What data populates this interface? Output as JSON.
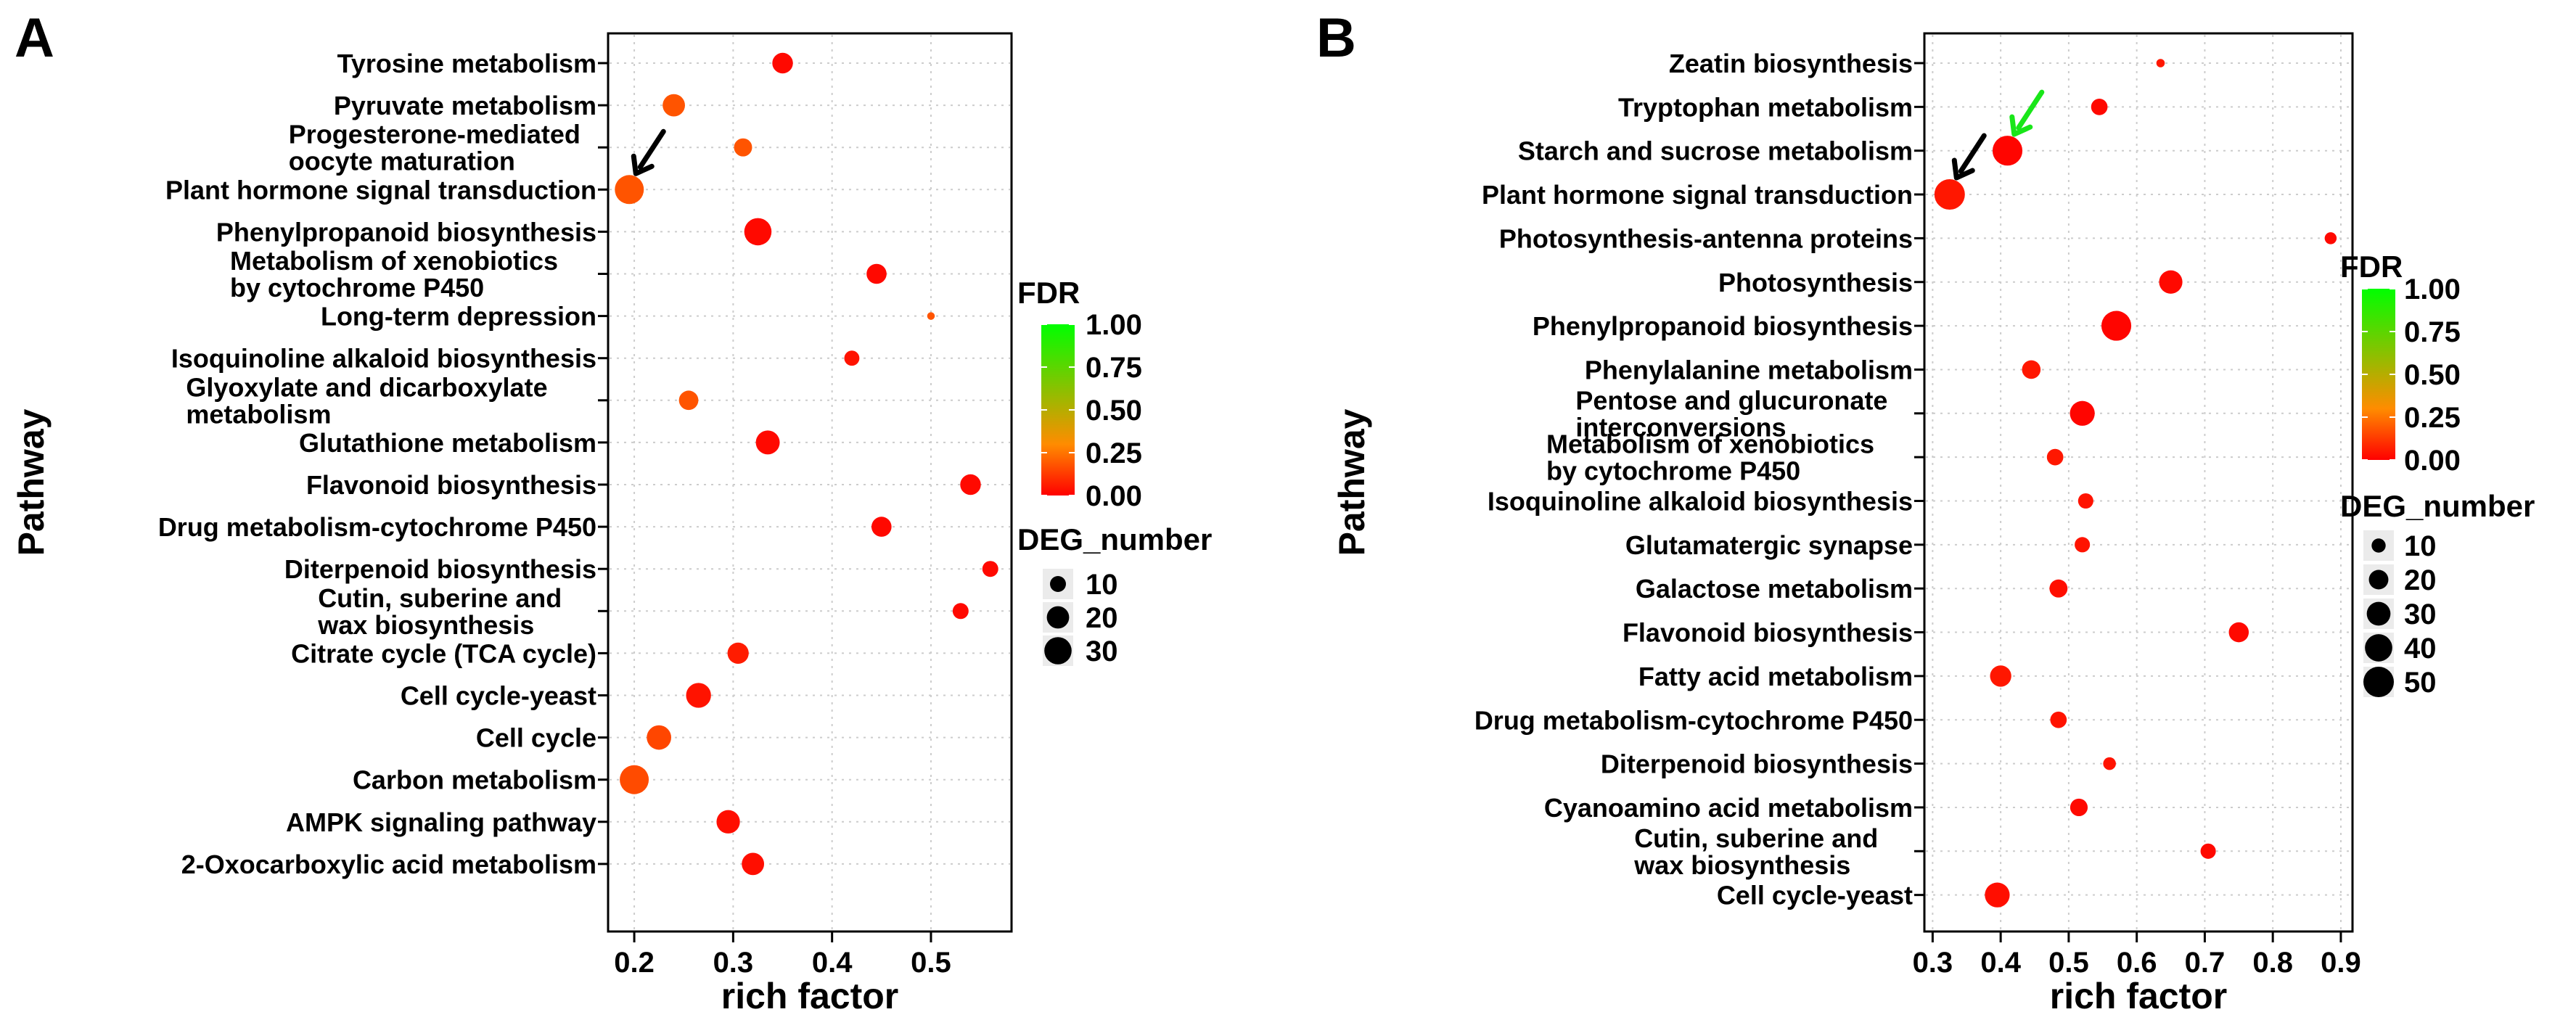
{
  "chart_data": [
    {
      "panel_label": "A",
      "type": "scatter",
      "xlabel": "rich factor",
      "ylabel": "Pathway",
      "xlim": [
        0.175,
        0.58
      ],
      "x_ticks": [
        0.2,
        0.3,
        0.4,
        0.5
      ],
      "x_tick_labels": [
        "0.2",
        "0.3",
        "0.4",
        "0.5"
      ],
      "grid": true,
      "color_legend": {
        "title": "FDR",
        "range": [
          0,
          1
        ],
        "ticks": [
          "1.00",
          "0.75",
          "0.50",
          "0.25",
          "0.00"
        ],
        "low_color": "#ff0000",
        "mid_color": "#ff8c00",
        "high_color": "#00ff00"
      },
      "size_legend": {
        "title": "DEG_number",
        "ticks": [
          10,
          20,
          30
        ],
        "tick_labels": [
          "10",
          "20",
          "30"
        ],
        "size_range": [
          1,
          34
        ]
      },
      "annotations": [
        {
          "type": "arrow",
          "color": "#000000",
          "pathway": "Plant hormone signal transduction"
        }
      ],
      "points": [
        {
          "pathway": "Tyrosine metabolism",
          "label_lines": [
            "Tyrosine metabolism"
          ],
          "rich_factor": 0.35,
          "fdr": 0.02,
          "deg_number": 17
        },
        {
          "pathway": "Pyruvate metabolism",
          "label_lines": [
            "Pyruvate metabolism"
          ],
          "rich_factor": 0.24,
          "fdr": 0.18,
          "deg_number": 20
        },
        {
          "pathway": "Progesterone-mediated oocyte maturation",
          "label_lines": [
            "Progesterone-mediated",
            "oocyte maturation"
          ],
          "rich_factor": 0.31,
          "fdr": 0.18,
          "deg_number": 13
        },
        {
          "pathway": "Plant hormone signal transduction",
          "label_lines": [
            "Plant hormone signal transduction"
          ],
          "rich_factor": 0.195,
          "fdr": 0.18,
          "deg_number": 34
        },
        {
          "pathway": "Phenylpropanoid biosynthesis",
          "label_lines": [
            "Phenylpropanoid biosynthesis"
          ],
          "rich_factor": 0.325,
          "fdr": 0.02,
          "deg_number": 30
        },
        {
          "pathway": "Metabolism of xenobiotics by cytochrome P450",
          "label_lines": [
            "Metabolism of xenobiotics",
            "by cytochrome P450"
          ],
          "rich_factor": 0.445,
          "fdr": 0.02,
          "deg_number": 16
        },
        {
          "pathway": "Long-term depression",
          "label_lines": [
            "Long-term depression"
          ],
          "rich_factor": 0.5,
          "fdr": 0.18,
          "deg_number": 2
        },
        {
          "pathway": "Isoquinoline alkaloid biosynthesis",
          "label_lines": [
            "Isoquinoline alkaloid biosynthesis"
          ],
          "rich_factor": 0.42,
          "fdr": 0.04,
          "deg_number": 9
        },
        {
          "pathway": "Glyoxylate and dicarboxylate metabolism",
          "label_lines": [
            "Glyoxylate and dicarboxylate",
            "metabolism"
          ],
          "rich_factor": 0.255,
          "fdr": 0.18,
          "deg_number": 15
        },
        {
          "pathway": "Glutathione metabolism",
          "label_lines": [
            "Glutathione metabolism"
          ],
          "rich_factor": 0.335,
          "fdr": 0.02,
          "deg_number": 23
        },
        {
          "pathway": "Flavonoid biosynthesis",
          "label_lines": [
            "Flavonoid biosynthesis"
          ],
          "rich_factor": 0.54,
          "fdr": 0.02,
          "deg_number": 17
        },
        {
          "pathway": "Drug metabolism-cytochrome P450",
          "label_lines": [
            "Drug metabolism-cytochrome P450"
          ],
          "rich_factor": 0.45,
          "fdr": 0.02,
          "deg_number": 16
        },
        {
          "pathway": "Diterpenoid biosynthesis",
          "label_lines": [
            "Diterpenoid biosynthesis"
          ],
          "rich_factor": 0.56,
          "fdr": 0.02,
          "deg_number": 10
        },
        {
          "pathway": "Cutin, suberine and wax biosynthesis",
          "label_lines": [
            "Cutin, suberine and",
            "wax biosynthesis"
          ],
          "rich_factor": 0.53,
          "fdr": 0.02,
          "deg_number": 10
        },
        {
          "pathway": "Citrate cycle (TCA cycle)",
          "label_lines": [
            "Citrate cycle (TCA cycle)"
          ],
          "rich_factor": 0.305,
          "fdr": 0.06,
          "deg_number": 18
        },
        {
          "pathway": "Cell cycle-yeast",
          "label_lines": [
            "Cell cycle-yeast"
          ],
          "rich_factor": 0.265,
          "fdr": 0.04,
          "deg_number": 25
        },
        {
          "pathway": "Cell cycle",
          "label_lines": [
            "Cell cycle"
          ],
          "rich_factor": 0.225,
          "fdr": 0.15,
          "deg_number": 24
        },
        {
          "pathway": "Carbon metabolism",
          "label_lines": [
            "Carbon metabolism"
          ],
          "rich_factor": 0.2,
          "fdr": 0.16,
          "deg_number": 34
        },
        {
          "pathway": "AMPK signaling pathway",
          "label_lines": [
            "AMPK signaling pathway"
          ],
          "rich_factor": 0.295,
          "fdr": 0.03,
          "deg_number": 22
        },
        {
          "pathway": "2-Oxocarboxylic acid metabolism",
          "label_lines": [
            "2-Oxocarboxylic acid metabolism"
          ],
          "rich_factor": 0.32,
          "fdr": 0.03,
          "deg_number": 20
        }
      ]
    },
    {
      "panel_label": "B",
      "type": "scatter",
      "xlabel": "rich factor",
      "ylabel": "Pathway",
      "xlim": [
        0.29,
        0.915
      ],
      "x_ticks": [
        0.3,
        0.4,
        0.5,
        0.6,
        0.7,
        0.8,
        0.9
      ],
      "x_tick_labels": [
        "0.3",
        "0.4",
        "0.5",
        "0.6",
        "0.7",
        "0.8",
        "0.9"
      ],
      "grid": true,
      "color_legend": {
        "title": "FDR",
        "range": [
          0,
          1
        ],
        "ticks": [
          "1.00",
          "0.75",
          "0.50",
          "0.25",
          "0.00"
        ],
        "low_color": "#ff0000",
        "mid_color": "#ff8c00",
        "high_color": "#00ff00"
      },
      "size_legend": {
        "title": "DEG_number",
        "ticks": [
          10,
          20,
          30,
          40,
          50
        ],
        "tick_labels": [
          "10",
          "20",
          "30",
          "40",
          "50"
        ],
        "size_range": [
          1,
          50
        ]
      },
      "annotations": [
        {
          "type": "arrow",
          "color": "#000000",
          "pathway": "Plant hormone signal transduction"
        },
        {
          "type": "arrow",
          "color": "#19e619",
          "pathway": "Starch and sucrose metabolism"
        }
      ],
      "points": [
        {
          "pathway": "Zeatin biosynthesis",
          "label_lines": [
            "Zeatin biosynthesis"
          ],
          "rich_factor": 0.635,
          "fdr": 0.05,
          "deg_number": 3
        },
        {
          "pathway": "Tryptophan metabolism",
          "label_lines": [
            "Tryptophan metabolism"
          ],
          "rich_factor": 0.545,
          "fdr": 0.02,
          "deg_number": 14
        },
        {
          "pathway": "Starch and sucrose metabolism",
          "label_lines": [
            "Starch and sucrose metabolism"
          ],
          "rich_factor": 0.41,
          "fdr": 0.01,
          "deg_number": 48
        },
        {
          "pathway": "Plant hormone signal transduction",
          "label_lines": [
            "Plant hormone signal transduction"
          ],
          "rich_factor": 0.325,
          "fdr": 0.05,
          "deg_number": 50
        },
        {
          "pathway": "Photosynthesis-antenna proteins",
          "label_lines": [
            "Photosynthesis-antenna proteins"
          ],
          "rich_factor": 0.885,
          "fdr": 0.02,
          "deg_number": 7
        },
        {
          "pathway": "Photosynthesis",
          "label_lines": [
            "Photosynthesis"
          ],
          "rich_factor": 0.65,
          "fdr": 0.02,
          "deg_number": 29
        },
        {
          "pathway": "Phenylpropanoid biosynthesis",
          "label_lines": [
            "Phenylpropanoid biosynthesis"
          ],
          "rich_factor": 0.57,
          "fdr": 0.01,
          "deg_number": 48
        },
        {
          "pathway": "Phenylalanine metabolism",
          "label_lines": [
            "Phenylalanine metabolism"
          ],
          "rich_factor": 0.445,
          "fdr": 0.05,
          "deg_number": 18
        },
        {
          "pathway": "Pentose and glucuronate interconversions",
          "label_lines": [
            "Pentose and glucuronate",
            "interconversions"
          ],
          "rich_factor": 0.52,
          "fdr": 0.01,
          "deg_number": 33
        },
        {
          "pathway": "Metabolism of xenobiotics by cytochrome P450",
          "label_lines": [
            "Metabolism of xenobiotics",
            "by cytochrome P450"
          ],
          "rich_factor": 0.48,
          "fdr": 0.05,
          "deg_number": 14
        },
        {
          "pathway": "Isoquinoline alkaloid biosynthesis",
          "label_lines": [
            "Isoquinoline alkaloid biosynthesis"
          ],
          "rich_factor": 0.525,
          "fdr": 0.04,
          "deg_number": 12
        },
        {
          "pathway": "Glutamatergic synapse",
          "label_lines": [
            "Glutamatergic synapse"
          ],
          "rich_factor": 0.52,
          "fdr": 0.04,
          "deg_number": 12
        },
        {
          "pathway": "Galactose metabolism",
          "label_lines": [
            "Galactose metabolism"
          ],
          "rich_factor": 0.485,
          "fdr": 0.03,
          "deg_number": 17
        },
        {
          "pathway": "Flavonoid biosynthesis",
          "label_lines": [
            "Flavonoid biosynthesis"
          ],
          "rich_factor": 0.75,
          "fdr": 0.02,
          "deg_number": 21
        },
        {
          "pathway": "Fatty acid metabolism",
          "label_lines": [
            "Fatty acid metabolism"
          ],
          "rich_factor": 0.4,
          "fdr": 0.05,
          "deg_number": 24
        },
        {
          "pathway": "Drug metabolism-cytochrome P450",
          "label_lines": [
            "Drug metabolism-cytochrome P450"
          ],
          "rich_factor": 0.485,
          "fdr": 0.04,
          "deg_number": 14
        },
        {
          "pathway": "Diterpenoid biosynthesis",
          "label_lines": [
            "Diterpenoid biosynthesis"
          ],
          "rich_factor": 0.56,
          "fdr": 0.04,
          "deg_number": 8
        },
        {
          "pathway": "Cyanoamino acid metabolism",
          "label_lines": [
            "Cyanoamino acid metabolism"
          ],
          "rich_factor": 0.515,
          "fdr": 0.02,
          "deg_number": 16
        },
        {
          "pathway": "Cutin, suberine and wax biosynthesis",
          "label_lines": [
            "Cutin, suberine and",
            "wax biosynthesis"
          ],
          "rich_factor": 0.705,
          "fdr": 0.02,
          "deg_number": 12
        },
        {
          "pathway": "Cell cycle-yeast",
          "label_lines": [
            "Cell cycle-yeast"
          ],
          "rich_factor": 0.395,
          "fdr": 0.03,
          "deg_number": 33
        }
      ]
    }
  ]
}
